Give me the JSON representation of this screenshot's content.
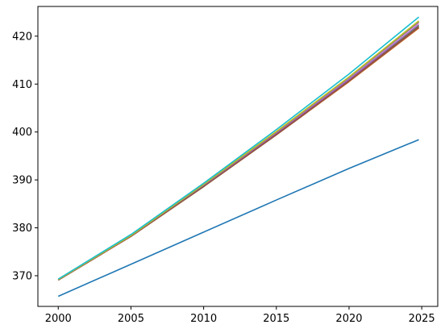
{
  "chart_data": {
    "type": "line",
    "title": "",
    "xlabel": "",
    "ylabel": "",
    "xlim": [
      1998.6,
      2026.1
    ],
    "ylim": [
      363.6,
      426.2
    ],
    "xticks": [
      2000,
      2005,
      2010,
      2015,
      2020,
      2025
    ],
    "yticks": [
      370,
      380,
      390,
      400,
      410,
      420
    ],
    "xtick_labels": [
      "2000",
      "2005",
      "2010",
      "2015",
      "2020",
      "2025"
    ],
    "ytick_labels": [
      "370",
      "380",
      "390",
      "400",
      "410",
      "420"
    ],
    "grid": false,
    "legend": "none",
    "x": [
      2000,
      2005,
      2010,
      2015,
      2020,
      2024.8
    ],
    "series": [
      {
        "color": "#1f77b4",
        "values": [
          365.7,
          372.4,
          379.1,
          385.8,
          392.4,
          398.4
        ]
      },
      {
        "color": "#ff7f0e",
        "values": [
          369.1,
          378.2,
          388.6,
          399.4,
          410.5,
          421.7
        ]
      },
      {
        "color": "#2ca02c",
        "values": [
          369.1,
          378.3,
          388.8,
          399.7,
          410.9,
          422.2
        ]
      },
      {
        "color": "#d62728",
        "values": [
          369.1,
          378.3,
          388.7,
          399.5,
          410.7,
          421.9
        ]
      },
      {
        "color": "#9467bd",
        "values": [
          369.2,
          378.4,
          388.9,
          399.8,
          411.0,
          422.4
        ]
      },
      {
        "color": "#8c564b",
        "values": [
          369.1,
          378.2,
          388.6,
          399.4,
          410.6,
          421.8
        ]
      },
      {
        "color": "#e377c2",
        "values": [
          369.2,
          378.4,
          389.0,
          400.0,
          411.3,
          422.8
        ]
      },
      {
        "color": "#7f7f7f",
        "values": [
          369.2,
          378.4,
          389.0,
          400.0,
          411.4,
          423.0
        ]
      },
      {
        "color": "#bcbd22",
        "values": [
          369.2,
          378.4,
          389.1,
          400.1,
          411.5,
          423.2
        ]
      },
      {
        "color": "#17becf",
        "values": [
          369.3,
          378.6,
          389.3,
          400.5,
          412.1,
          424.0
        ]
      }
    ]
  }
}
